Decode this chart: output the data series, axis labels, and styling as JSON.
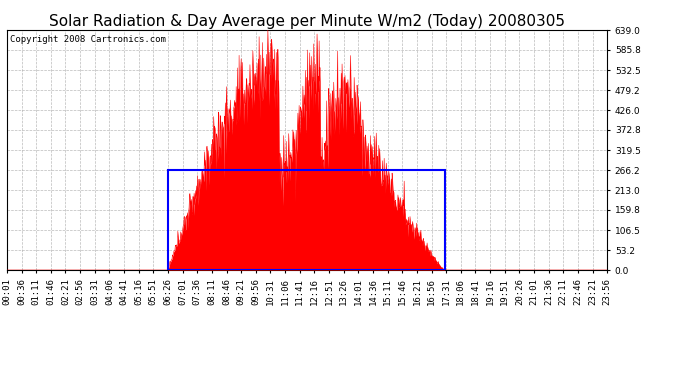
{
  "title": "Solar Radiation & Day Average per Minute W/m2 (Today) 20080305",
  "copyright": "Copyright 2008 Cartronics.com",
  "ymin": 0.0,
  "ymax": 639.0,
  "yticks": [
    0.0,
    53.2,
    106.5,
    159.8,
    213.0,
    266.2,
    319.5,
    372.8,
    426.0,
    479.2,
    532.5,
    585.8,
    639.0
  ],
  "bar_color": "#FF0000",
  "avg_val": 266.2,
  "background_color": "#FFFFFF",
  "grid_color": "#AAAAAA",
  "title_fontsize": 11,
  "copyright_fontsize": 6.5,
  "tick_fontsize": 6.5,
  "num_points": 1440,
  "sunrise_min": 386,
  "sunset_min": 1051,
  "peak_val": 639.0,
  "x_tick_labels": [
    "00:01",
    "00:36",
    "01:11",
    "01:46",
    "02:21",
    "02:56",
    "03:31",
    "04:06",
    "04:41",
    "05:16",
    "05:51",
    "06:26",
    "07:01",
    "07:36",
    "08:11",
    "08:46",
    "09:21",
    "09:56",
    "10:31",
    "11:06",
    "11:41",
    "12:16",
    "12:51",
    "13:26",
    "14:01",
    "14:36",
    "15:11",
    "15:46",
    "16:21",
    "16:56",
    "17:31",
    "18:06",
    "18:41",
    "19:16",
    "19:51",
    "20:26",
    "21:01",
    "21:36",
    "22:11",
    "22:46",
    "23:21",
    "23:56"
  ]
}
